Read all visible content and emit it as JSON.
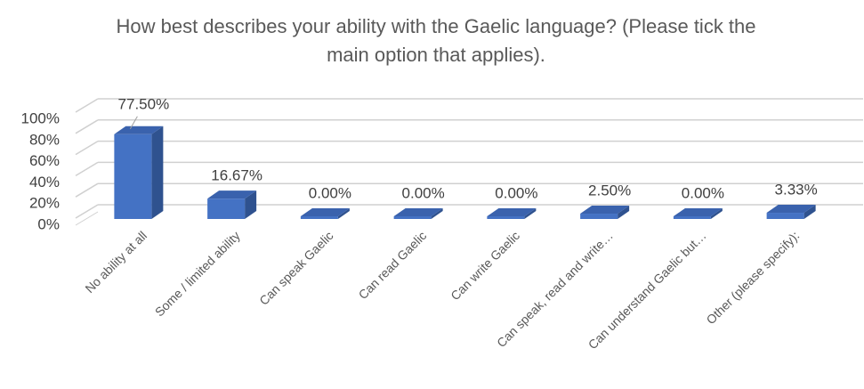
{
  "chart_data": {
    "type": "bar3d",
    "title": "How best describes your ability with the Gaelic language? (Please tick the main option that applies).",
    "categories": [
      "No ability at all",
      "Some / limited ability",
      "Can speak Gaelic",
      "Can read Gaelic",
      "Can write Gaelic",
      "Can speak, read and write…",
      "Can understand Gaelic but…",
      "Other (please specify):"
    ],
    "values": [
      77.5,
      16.67,
      0,
      0,
      0,
      2.5,
      0,
      3.33
    ],
    "value_labels": [
      "77.50%",
      "16.67%",
      "0.00%",
      "0.00%",
      "0.00%",
      "2.50%",
      "0.00%",
      "3.33%"
    ],
    "color": "#4472c4",
    "ylim": [
      0,
      100
    ],
    "yticks": [
      {
        "value": 0,
        "label": "0%"
      },
      {
        "value": 20,
        "label": "20%"
      },
      {
        "value": 40,
        "label": "40%"
      },
      {
        "value": 60,
        "label": "60%"
      },
      {
        "value": 80,
        "label": "80%"
      },
      {
        "value": 100,
        "label": "100%"
      }
    ],
    "grid": true
  }
}
